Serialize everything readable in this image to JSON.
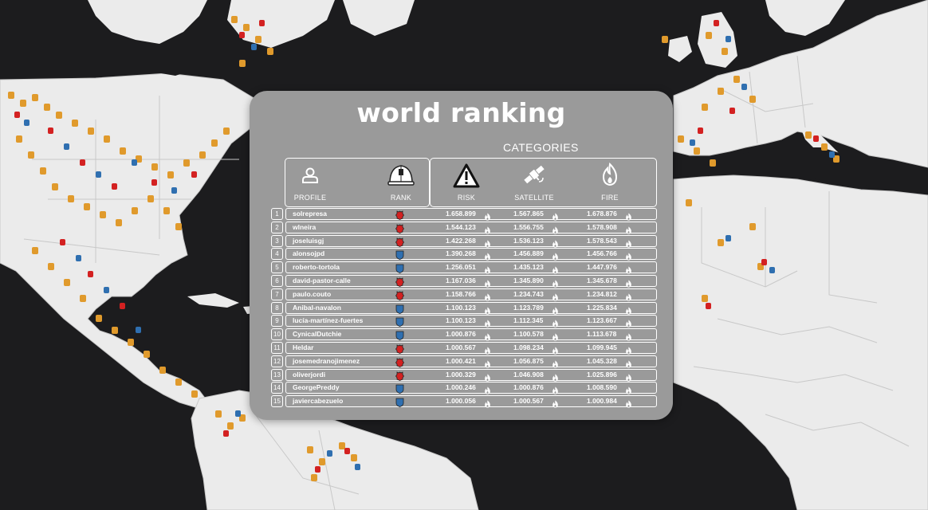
{
  "title": "world ranking",
  "categories_title": "CATEGORIES",
  "headers": {
    "profile": "PROFILE",
    "rank": "RANK",
    "risk": "RISK",
    "satellite": "SATELLITE",
    "fire": "FIRE"
  },
  "colors": {
    "background_sea": "#1c1c1e",
    "land": "#ebebeb",
    "panel": "#9a9a9a",
    "marker_orange": "#e09a2c",
    "marker_red": "#d32121",
    "marker_blue": "#2f6fb0"
  },
  "rows": [
    {
      "num": "1",
      "name": "solrepresa",
      "rank_color": "red",
      "rank_icon": "red-badge-icon",
      "risk": "1.658.899",
      "satellite": "1.567.865",
      "fire": "1.678.876"
    },
    {
      "num": "2",
      "name": "wlneira",
      "rank_color": "red",
      "rank_icon": "red-badge-icon",
      "risk": "1.544.123",
      "satellite": "1.556.755",
      "fire": "1.578.908"
    },
    {
      "num": "3",
      "name": "joseluisgj",
      "rank_color": "red",
      "rank_icon": "red-badge-icon",
      "risk": "1.422.268",
      "satellite": "1.536.123",
      "fire": "1.578.543"
    },
    {
      "num": "4",
      "name": "alonsojpd",
      "rank_color": "blue",
      "rank_icon": "blue-shield-icon",
      "risk": "1.390.268",
      "satellite": "1.456.889",
      "fire": "1.456.766"
    },
    {
      "num": "5",
      "name": "roberto-tortola",
      "rank_color": "blue",
      "rank_icon": "blue-shield-icon",
      "risk": "1.256.051",
      "satellite": "1.435.123",
      "fire": "1.447.976"
    },
    {
      "num": "6",
      "name": "david-pastor-calle",
      "rank_color": "red",
      "rank_icon": "red-badge-icon",
      "risk": "1.167.036",
      "satellite": "1.345.890",
      "fire": "1.345.678"
    },
    {
      "num": "7",
      "name": "paulo.couto",
      "rank_color": "red",
      "rank_icon": "red-badge-icon",
      "risk": "1.158.766",
      "satellite": "1.234.743",
      "fire": "1.234.812"
    },
    {
      "num": "8",
      "name": "Anibal-navalon",
      "rank_color": "blue",
      "rank_icon": "blue-shield-icon",
      "risk": "1.100.123",
      "satellite": "1.123.789",
      "fire": "1.225.834"
    },
    {
      "num": "9",
      "name": "lucía-martínez-fuertes",
      "rank_color": "blue",
      "rank_icon": "blue-shield-icon",
      "risk": "1.100.123",
      "satellite": "1.112.345",
      "fire": "1.123.667"
    },
    {
      "num": "10",
      "name": "CynicalDutchie",
      "rank_color": "blue",
      "rank_icon": "blue-shield-icon",
      "risk": "1.000.876",
      "satellite": "1.100.578",
      "fire": "1.113.678"
    },
    {
      "num": "11",
      "name": "Heldar",
      "rank_color": "red",
      "rank_icon": "red-badge-icon",
      "risk": "1.000.567",
      "satellite": "1.098.234",
      "fire": "1.099.945"
    },
    {
      "num": "12",
      "name": "josemedranojimenez",
      "rank_color": "red",
      "rank_icon": "red-badge-icon",
      "risk": "1.000.421",
      "satellite": "1.056.875",
      "fire": "1.045.328"
    },
    {
      "num": "13",
      "name": "oliverjordi",
      "rank_color": "red",
      "rank_icon": "red-badge-icon",
      "risk": "1.000.329",
      "satellite": "1.046.908",
      "fire": "1.025.896"
    },
    {
      "num": "14",
      "name": "GeorgePreddy",
      "rank_color": "blue",
      "rank_icon": "blue-shield-icon",
      "risk": "1.000.246",
      "satellite": "1.000.876",
      "fire": "1.008.590"
    },
    {
      "num": "15",
      "name": "javiercabezuelo",
      "rank_color": "blue",
      "rank_icon": "blue-shield-icon",
      "risk": "1.000.056",
      "satellite": "1.000.567",
      "fire": "1.000.984"
    }
  ]
}
